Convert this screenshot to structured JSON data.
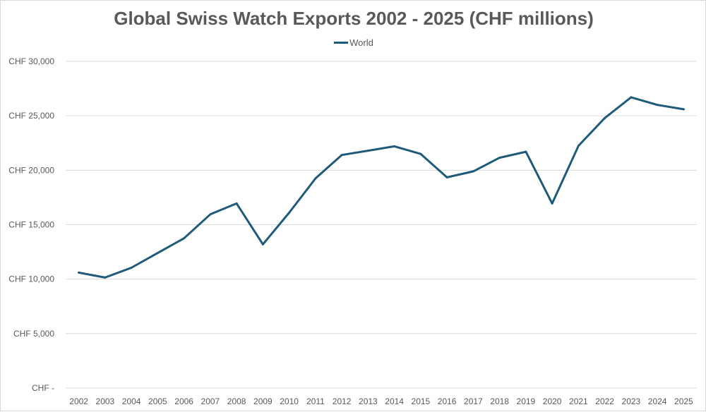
{
  "chart_data": {
    "type": "line",
    "title": "Global Swiss Watch Exports 2002 - 2025 (CHF millions)",
    "xlabel": "",
    "ylabel": "",
    "categories": [
      "2002",
      "2003",
      "2004",
      "2005",
      "2006",
      "2007",
      "2008",
      "2009",
      "2010",
      "2011",
      "2012",
      "2013",
      "2014",
      "2015",
      "2016",
      "2017",
      "2018",
      "2019",
      "2020",
      "2021",
      "2022",
      "2023",
      "2024",
      "2025"
    ],
    "series": [
      {
        "name": "World",
        "color": "#1f5a7a",
        "values": [
          10600,
          10150,
          11050,
          12400,
          13750,
          15950,
          16950,
          13200,
          16100,
          19250,
          21400,
          21800,
          22200,
          21500,
          19350,
          19900,
          21150,
          21700,
          16950,
          22250,
          24800,
          26700,
          26000,
          25600
        ]
      }
    ],
    "ylim": [
      0,
      30000
    ],
    "y_ticks": [
      0,
      5000,
      10000,
      15000,
      20000,
      25000,
      30000
    ],
    "y_tick_labels": [
      "CHF -",
      "CHF 5,000",
      "CHF 10,000",
      "CHF 15,000",
      "CHF 20,000",
      "CHF 25,000",
      "CHF 30,000"
    ],
    "grid": true,
    "legend_position": "top"
  }
}
